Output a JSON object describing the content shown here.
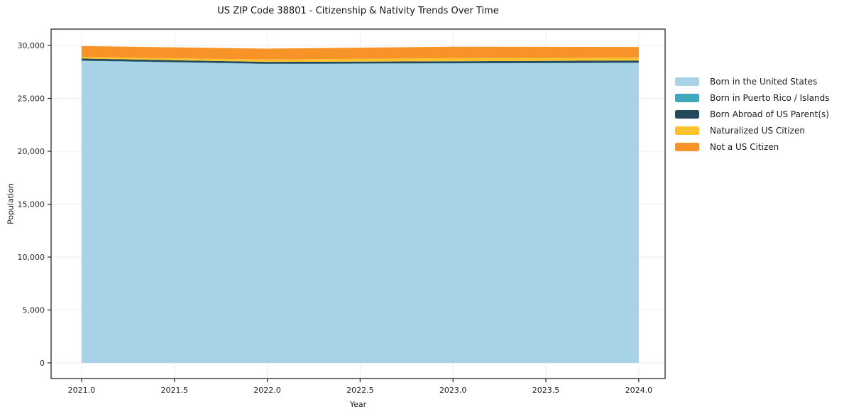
{
  "chart_data": {
    "type": "area",
    "stacked": true,
    "title": "US ZIP Code 38801 - Citizenship & Nativity Trends Over Time",
    "xlabel": "Year",
    "ylabel": "Population",
    "x": [
      2021,
      2022,
      2023,
      2024
    ],
    "series": [
      {
        "name": "Born in the United States",
        "color": "#a8d2e6",
        "values": [
          28550,
          28250,
          28300,
          28350
        ]
      },
      {
        "name": "Born in Puerto Rico / Islands",
        "color": "#41a7bd",
        "values": [
          25,
          25,
          25,
          25
        ]
      },
      {
        "name": "Born Abroad of US Parent(s)",
        "color": "#24485c",
        "values": [
          190,
          170,
          180,
          200
        ]
      },
      {
        "name": "Naturalized US Citizen",
        "color": "#fcc22d",
        "values": [
          150,
          230,
          300,
          280
        ]
      },
      {
        "name": "Not a US Citizen",
        "color": "#f79327",
        "values": [
          1030,
          1025,
          1080,
          1000
        ]
      }
    ],
    "xticks": {
      "values": [
        2021.0,
        2021.5,
        2022.0,
        2022.5,
        2023.0,
        2023.5,
        2024.0
      ],
      "labels": [
        "2021.0",
        "2021.5",
        "2022.0",
        "2022.5",
        "2023.0",
        "2023.5",
        "2024.0"
      ]
    },
    "yticks": {
      "values": [
        0,
        5000,
        10000,
        15000,
        20000,
        25000,
        30000
      ],
      "labels": [
        "0",
        "5,000",
        "10,000",
        "15,000",
        "20,000",
        "25,000",
        "30,000"
      ]
    },
    "xlim": [
      2020.836,
      2024.142
    ],
    "ylim": [
      -1477,
      31544
    ],
    "grid": true,
    "legend_position": "right-of-plot-top"
  },
  "colors": {
    "grid": "#eceef0",
    "spine": "#262626",
    "tick_text": "#262626"
  }
}
